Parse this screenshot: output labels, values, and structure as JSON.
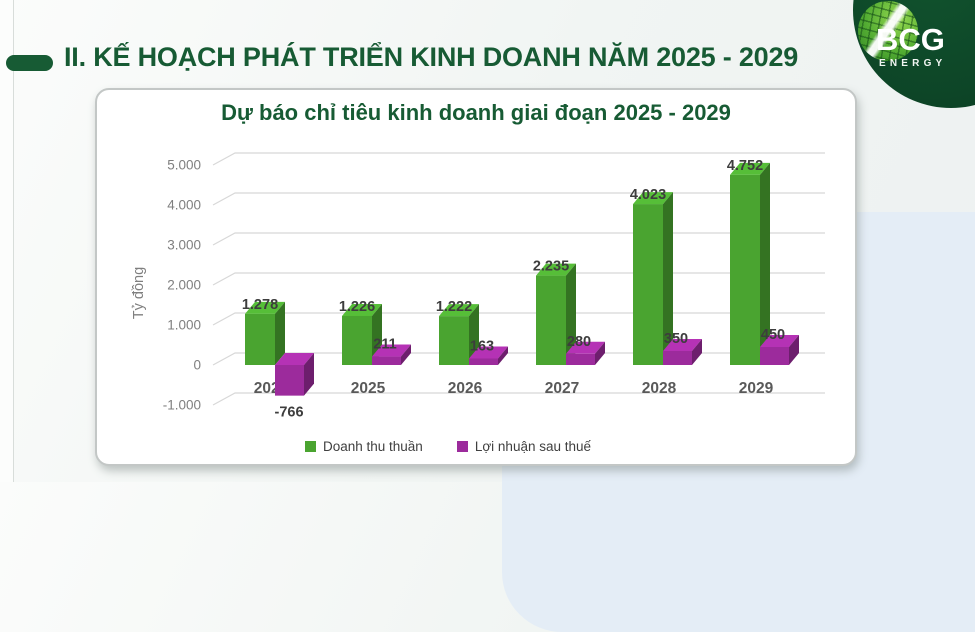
{
  "header": {
    "title": "II. KẾ HOẠCH PHÁT TRIỂN KINH DOANH NĂM 2025 - 2029"
  },
  "logo": {
    "brand": "BCG",
    "subtitle": "ENERGY"
  },
  "chart_data": {
    "type": "bar",
    "title": "Dự báo chỉ tiêu kinh doanh giai đoạn 2025 - 2029",
    "ylabel": "Tỷ đồng",
    "categories": [
      "2024",
      "2025",
      "2026",
      "2027",
      "2028",
      "2029"
    ],
    "series": [
      {
        "name": "Doanh thu thuần",
        "color": "#4AA430",
        "values": [
          1278,
          1226,
          1222,
          2235,
          4023,
          4752
        ],
        "labels": [
          "1.278",
          "1.226",
          "1.222",
          "2.235",
          "4.023",
          "4.752"
        ]
      },
      {
        "name": "Lợi nhuận sau thuế",
        "color": "#9C2B9C",
        "values": [
          -766,
          211,
          163,
          280,
          350,
          450
        ],
        "labels": [
          "-766",
          "211",
          "163",
          "280",
          "350",
          "450"
        ]
      }
    ],
    "y_ticks": [
      {
        "label": "5.000",
        "value": 5000
      },
      {
        "label": "4.000",
        "value": 4000
      },
      {
        "label": "3.000",
        "value": 3000
      },
      {
        "label": "2.000",
        "value": 2000
      },
      {
        "label": "1.000",
        "value": 1000
      },
      {
        "label": "0",
        "value": 0
      },
      {
        "label": "-1.000",
        "value": -1000
      }
    ],
    "ylim": [
      -1000,
      5000
    ],
    "grid": true,
    "legend_position": "bottom"
  }
}
